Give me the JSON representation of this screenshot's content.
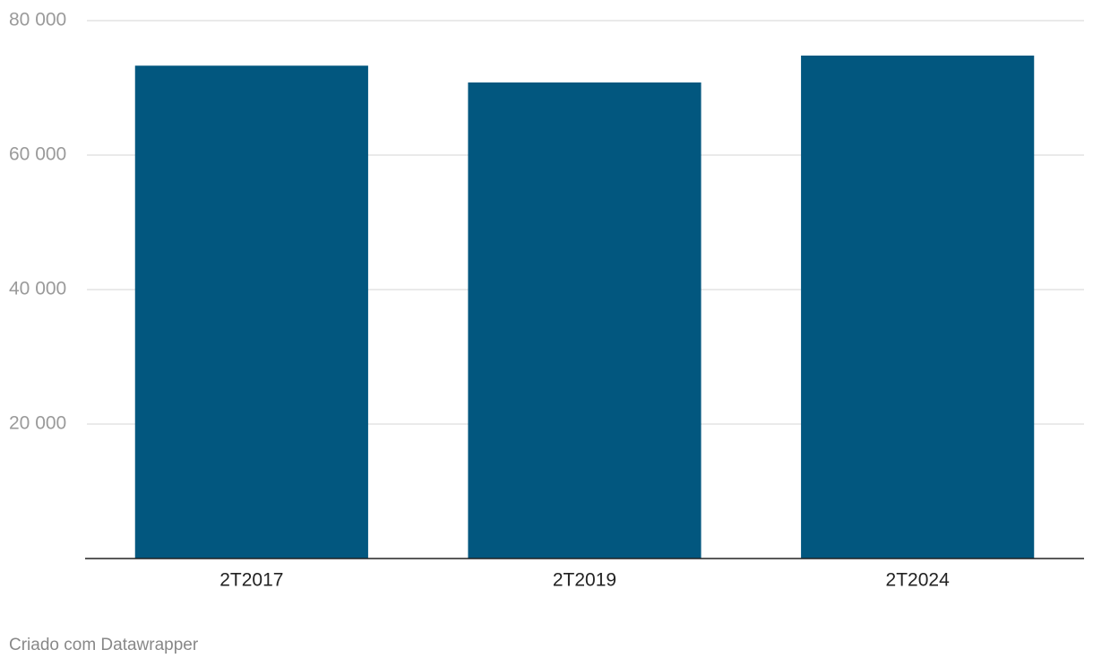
{
  "chart_data": {
    "type": "bar",
    "categories": [
      "2T2017",
      "2T2019",
      "2T2024"
    ],
    "values": [
      73300,
      70800,
      74800
    ],
    "color": "#02577f",
    "ylim": [
      0,
      80000
    ],
    "yticks": [
      {
        "value": 20000,
        "label": "20 000"
      },
      {
        "value": 40000,
        "label": "40 000"
      },
      {
        "value": 60000,
        "label": "60 000"
      },
      {
        "value": 80000,
        "label": "80 000"
      }
    ],
    "grid": true,
    "footer": "Criado com Datawrapper"
  }
}
